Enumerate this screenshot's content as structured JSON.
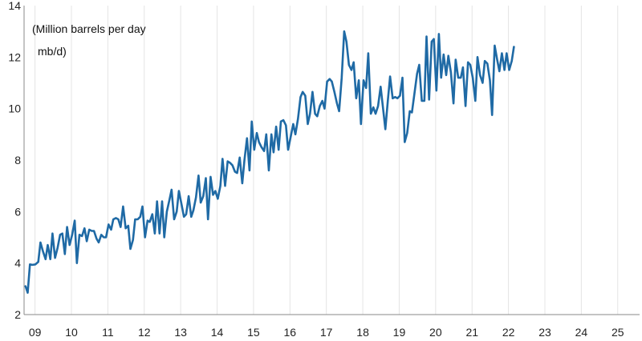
{
  "chart_data": {
    "type": "line",
    "title": "",
    "xlabel": "",
    "ylabel": "",
    "annotations": [
      "(Million barrels per day",
      "mb/d)"
    ],
    "ylim": [
      2,
      14
    ],
    "yticks": [
      2,
      4,
      6,
      8,
      10,
      12,
      14
    ],
    "xlim": [
      2008.7,
      2025.6
    ],
    "xticks": [
      {
        "value": 2009.0,
        "label": "09"
      },
      {
        "value": 2010.0,
        "label": "10"
      },
      {
        "value": 2011.0,
        "label": "11"
      },
      {
        "value": 2012.0,
        "label": "12"
      },
      {
        "value": 2013.0,
        "label": "13"
      },
      {
        "value": 2014.0,
        "label": "14"
      },
      {
        "value": 2015.0,
        "label": "15"
      },
      {
        "value": 2016.0,
        "label": "16"
      },
      {
        "value": 2017.0,
        "label": "17"
      },
      {
        "value": 2018.0,
        "label": "18"
      },
      {
        "value": 2019.0,
        "label": "19"
      },
      {
        "value": 2020.0,
        "label": "20"
      },
      {
        "value": 2021.0,
        "label": "21"
      },
      {
        "value": 2022.0,
        "label": "22"
      },
      {
        "value": 2023.0,
        "label": "23"
      },
      {
        "value": 2024.0,
        "label": "24"
      },
      {
        "value": 2025.0,
        "label": "25"
      }
    ],
    "grid": {
      "vertical": true,
      "horizontal": false
    },
    "line_color": "#1f6aa5",
    "grid_color": "#e4e4e4",
    "axis_color": "#888888",
    "series": [
      {
        "points": [
          [
            2008.74,
            3.1
          ],
          [
            2008.8,
            2.85
          ],
          [
            2008.86,
            3.95
          ],
          [
            2008.93,
            3.93
          ],
          [
            2009.01,
            3.95
          ],
          [
            2009.09,
            4.05
          ],
          [
            2009.15,
            4.8
          ],
          [
            2009.22,
            4.45
          ],
          [
            2009.29,
            4.15
          ],
          [
            2009.35,
            4.7
          ],
          [
            2009.42,
            4.15
          ],
          [
            2009.48,
            5.15
          ],
          [
            2009.55,
            4.2
          ],
          [
            2009.62,
            4.6
          ],
          [
            2009.69,
            5.1
          ],
          [
            2009.75,
            5.15
          ],
          [
            2009.82,
            4.35
          ],
          [
            2009.88,
            5.4
          ],
          [
            2009.95,
            4.7
          ],
          [
            2010.02,
            5.1
          ],
          [
            2010.09,
            5.65
          ],
          [
            2010.15,
            4.0
          ],
          [
            2010.22,
            5.1
          ],
          [
            2010.29,
            5.05
          ],
          [
            2010.36,
            5.35
          ],
          [
            2010.42,
            4.85
          ],
          [
            2010.49,
            5.3
          ],
          [
            2010.56,
            5.25
          ],
          [
            2010.62,
            5.25
          ],
          [
            2010.69,
            4.95
          ],
          [
            2010.75,
            4.8
          ],
          [
            2010.82,
            5.1
          ],
          [
            2010.89,
            5.0
          ],
          [
            2010.95,
            5.0
          ],
          [
            2011.02,
            5.5
          ],
          [
            2011.09,
            5.3
          ],
          [
            2011.15,
            5.7
          ],
          [
            2011.22,
            5.75
          ],
          [
            2011.29,
            5.7
          ],
          [
            2011.35,
            5.4
          ],
          [
            2011.42,
            6.2
          ],
          [
            2011.49,
            5.35
          ],
          [
            2011.56,
            5.45
          ],
          [
            2011.62,
            4.55
          ],
          [
            2011.69,
            4.9
          ],
          [
            2011.75,
            5.7
          ],
          [
            2011.82,
            5.7
          ],
          [
            2011.89,
            5.8
          ],
          [
            2011.95,
            6.2
          ],
          [
            2012.02,
            5.0
          ],
          [
            2012.09,
            5.65
          ],
          [
            2012.15,
            5.6
          ],
          [
            2012.22,
            5.9
          ],
          [
            2012.29,
            5.15
          ],
          [
            2012.35,
            6.4
          ],
          [
            2012.42,
            5.15
          ],
          [
            2012.49,
            6.4
          ],
          [
            2012.55,
            5.0
          ],
          [
            2012.62,
            6.0
          ],
          [
            2012.69,
            6.45
          ],
          [
            2012.75,
            6.85
          ],
          [
            2012.82,
            5.7
          ],
          [
            2012.89,
            6.0
          ],
          [
            2012.95,
            6.8
          ],
          [
            2013.02,
            6.3
          ],
          [
            2013.09,
            5.8
          ],
          [
            2013.15,
            5.9
          ],
          [
            2013.22,
            6.6
          ],
          [
            2013.29,
            5.8
          ],
          [
            2013.35,
            6.05
          ],
          [
            2013.42,
            6.55
          ],
          [
            2013.49,
            7.4
          ],
          [
            2013.55,
            6.35
          ],
          [
            2013.62,
            6.6
          ],
          [
            2013.69,
            7.3
          ],
          [
            2013.75,
            5.7
          ],
          [
            2013.82,
            7.35
          ],
          [
            2013.89,
            6.65
          ],
          [
            2013.95,
            6.8
          ],
          [
            2014.02,
            6.5
          ],
          [
            2014.09,
            7.0
          ],
          [
            2014.15,
            8.05
          ],
          [
            2014.22,
            7.0
          ],
          [
            2014.29,
            7.95
          ],
          [
            2014.35,
            7.9
          ],
          [
            2014.42,
            7.8
          ],
          [
            2014.49,
            7.55
          ],
          [
            2014.55,
            7.5
          ],
          [
            2014.62,
            8.1
          ],
          [
            2014.69,
            7.1
          ],
          [
            2014.75,
            8.0
          ],
          [
            2014.82,
            8.85
          ],
          [
            2014.89,
            7.6
          ],
          [
            2014.95,
            9.5
          ],
          [
            2015.02,
            8.4
          ],
          [
            2015.09,
            9.05
          ],
          [
            2015.15,
            8.7
          ],
          [
            2015.22,
            8.5
          ],
          [
            2015.29,
            8.35
          ],
          [
            2015.35,
            9.0
          ],
          [
            2015.42,
            7.6
          ],
          [
            2015.49,
            9.0
          ],
          [
            2015.55,
            8.3
          ],
          [
            2015.62,
            9.3
          ],
          [
            2015.69,
            8.4
          ],
          [
            2015.75,
            9.5
          ],
          [
            2015.82,
            9.55
          ],
          [
            2015.89,
            9.35
          ],
          [
            2015.95,
            8.4
          ],
          [
            2016.02,
            8.9
          ],
          [
            2016.09,
            9.4
          ],
          [
            2016.15,
            9.0
          ],
          [
            2016.22,
            9.6
          ],
          [
            2016.29,
            10.45
          ],
          [
            2016.35,
            10.65
          ],
          [
            2016.42,
            10.5
          ],
          [
            2016.49,
            9.4
          ],
          [
            2016.55,
            9.8
          ],
          [
            2016.62,
            10.65
          ],
          [
            2016.69,
            9.8
          ],
          [
            2016.75,
            9.7
          ],
          [
            2016.82,
            10.1
          ],
          [
            2016.89,
            10.3
          ],
          [
            2016.95,
            10.0
          ],
          [
            2017.02,
            11.05
          ],
          [
            2017.09,
            11.15
          ],
          [
            2017.15,
            11.05
          ],
          [
            2017.22,
            10.65
          ],
          [
            2017.29,
            10.2
          ],
          [
            2017.35,
            9.9
          ],
          [
            2017.42,
            11.2
          ],
          [
            2017.49,
            13.0
          ],
          [
            2017.55,
            12.6
          ],
          [
            2017.62,
            11.7
          ],
          [
            2017.69,
            11.5
          ],
          [
            2017.75,
            11.8
          ],
          [
            2017.82,
            10.4
          ],
          [
            2017.89,
            11.1
          ],
          [
            2017.95,
            9.4
          ],
          [
            2018.02,
            11.1
          ],
          [
            2018.09,
            10.8
          ],
          [
            2018.15,
            12.15
          ],
          [
            2018.22,
            9.8
          ],
          [
            2018.29,
            10.05
          ],
          [
            2018.35,
            9.8
          ],
          [
            2018.42,
            10.1
          ],
          [
            2018.49,
            10.85
          ],
          [
            2018.55,
            10.1
          ],
          [
            2018.62,
            9.2
          ],
          [
            2018.69,
            10.35
          ],
          [
            2018.75,
            11.25
          ],
          [
            2018.82,
            10.4
          ],
          [
            2018.89,
            10.45
          ],
          [
            2018.95,
            10.4
          ],
          [
            2019.02,
            10.5
          ],
          [
            2019.09,
            11.2
          ],
          [
            2019.15,
            8.7
          ],
          [
            2019.22,
            9.05
          ],
          [
            2019.29,
            9.9
          ],
          [
            2019.35,
            9.85
          ],
          [
            2019.42,
            10.6
          ],
          [
            2019.49,
            11.35
          ],
          [
            2019.55,
            11.7
          ],
          [
            2019.62,
            10.3
          ],
          [
            2019.69,
            10.3
          ],
          [
            2019.75,
            12.8
          ],
          [
            2019.82,
            10.35
          ],
          [
            2019.89,
            12.6
          ],
          [
            2019.95,
            12.7
          ],
          [
            2020.02,
            10.7
          ],
          [
            2020.09,
            12.9
          ],
          [
            2020.15,
            11.2
          ],
          [
            2020.22,
            12.1
          ],
          [
            2020.29,
            11.3
          ],
          [
            2020.35,
            12.05
          ],
          [
            2020.42,
            11.4
          ],
          [
            2020.49,
            10.2
          ],
          [
            2020.55,
            11.9
          ],
          [
            2020.62,
            11.2
          ],
          [
            2020.69,
            11.2
          ],
          [
            2020.75,
            11.6
          ],
          [
            2020.82,
            10.1
          ],
          [
            2020.89,
            11.8
          ],
          [
            2020.95,
            11.7
          ],
          [
            2021.02,
            11.2
          ],
          [
            2021.09,
            10.3
          ],
          [
            2021.15,
            12.0
          ],
          [
            2021.22,
            11.3
          ],
          [
            2021.29,
            11.0
          ],
          [
            2021.35,
            11.85
          ],
          [
            2021.42,
            11.75
          ],
          [
            2021.49,
            11.1
          ],
          [
            2021.55,
            9.75
          ],
          [
            2021.62,
            12.45
          ],
          [
            2021.69,
            11.9
          ],
          [
            2021.75,
            11.45
          ],
          [
            2021.82,
            12.15
          ],
          [
            2021.89,
            11.5
          ],
          [
            2021.95,
            12.15
          ],
          [
            2022.02,
            11.5
          ],
          [
            2022.09,
            11.85
          ],
          [
            2022.15,
            12.4
          ]
        ]
      }
    ]
  }
}
